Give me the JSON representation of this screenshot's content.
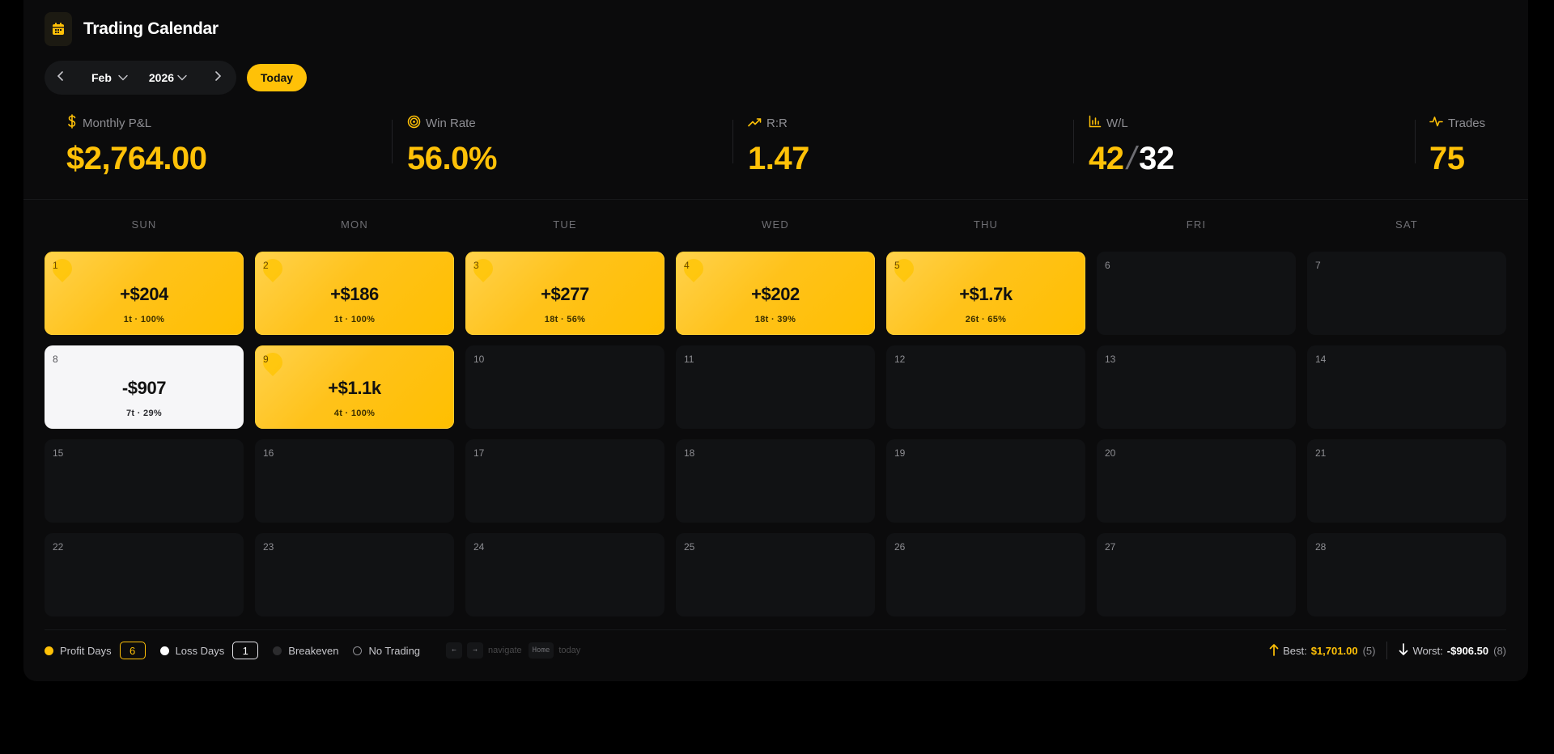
{
  "header": {
    "title": "Trading Calendar",
    "icon": "calendar-icon"
  },
  "nav": {
    "month": "Feb",
    "year": "2026",
    "today_label": "Today"
  },
  "stats": {
    "monthly_pnl": {
      "label": "Monthly P&L",
      "value": "$2,764.00"
    },
    "win_rate": {
      "label": "Win Rate",
      "value": "56.0%"
    },
    "rr": {
      "label": "R:R",
      "value": "1.47"
    },
    "wl": {
      "label": "W/L",
      "wins": "42",
      "sep": "/",
      "losses": "32"
    },
    "trades": {
      "label": "Trades",
      "value": "75"
    }
  },
  "weekdays": [
    "SUN",
    "MON",
    "TUE",
    "WED",
    "THU",
    "FRI",
    "SAT"
  ],
  "days": [
    {
      "day": "1",
      "type": "profit",
      "pnl": "+$204",
      "meta": "1t · 100%"
    },
    {
      "day": "2",
      "type": "profit",
      "pnl": "+$186",
      "meta": "1t · 100%"
    },
    {
      "day": "3",
      "type": "profit",
      "pnl": "+$277",
      "meta": "18t · 56%"
    },
    {
      "day": "4",
      "type": "profit",
      "pnl": "+$202",
      "meta": "18t · 39%"
    },
    {
      "day": "5",
      "type": "profit",
      "pnl": "+$1.7k",
      "meta": "26t · 65%"
    },
    {
      "day": "6",
      "type": "empty"
    },
    {
      "day": "7",
      "type": "empty"
    },
    {
      "day": "8",
      "type": "loss",
      "pnl": "-$907",
      "meta": "7t · 29%"
    },
    {
      "day": "9",
      "type": "profit",
      "pnl": "+$1.1k",
      "meta": "4t · 100%"
    },
    {
      "day": "10",
      "type": "empty"
    },
    {
      "day": "11",
      "type": "empty"
    },
    {
      "day": "12",
      "type": "empty"
    },
    {
      "day": "13",
      "type": "empty"
    },
    {
      "day": "14",
      "type": "empty"
    },
    {
      "day": "15",
      "type": "empty"
    },
    {
      "day": "16",
      "type": "empty"
    },
    {
      "day": "17",
      "type": "empty"
    },
    {
      "day": "18",
      "type": "empty"
    },
    {
      "day": "19",
      "type": "empty"
    },
    {
      "day": "20",
      "type": "empty"
    },
    {
      "day": "21",
      "type": "empty"
    },
    {
      "day": "22",
      "type": "empty"
    },
    {
      "day": "23",
      "type": "empty"
    },
    {
      "day": "24",
      "type": "empty"
    },
    {
      "day": "25",
      "type": "empty"
    },
    {
      "day": "26",
      "type": "empty"
    },
    {
      "day": "27",
      "type": "empty"
    },
    {
      "day": "28",
      "type": "empty"
    }
  ],
  "legend": {
    "profit_label": "Profit Days",
    "profit_count": "6",
    "loss_label": "Loss Days",
    "loss_count": "1",
    "breakeven_label": "Breakeven",
    "no_trading_label": "No Trading",
    "kbd_left": "←",
    "kbd_right": "→",
    "navigate_label": "navigate",
    "kbd_home": "Home",
    "today_hint": "today"
  },
  "extremes": {
    "best_label": "Best:",
    "best_value": "$1,701.00",
    "best_count": "(5)",
    "worst_label": "Worst:",
    "worst_value": "-$906.50",
    "worst_count": "(8)"
  },
  "colors": {
    "accent": "#ffc107",
    "background": "#000000",
    "panel": "#0b0b0c",
    "cell": "#111214",
    "loss_cell": "#f6f6f8"
  }
}
